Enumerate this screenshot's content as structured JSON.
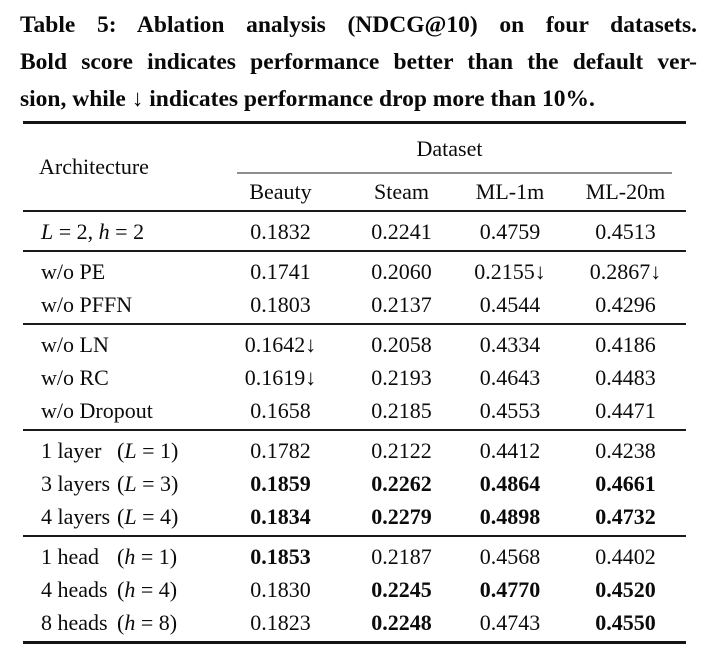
{
  "caption": {
    "lines": [
      "Table 5: Ablation analysis (NDCG@10) on four datasets.",
      "Bold score indicates performance better than the default ver-",
      "sion, while ↓ indicates performance drop more than 10%."
    ]
  },
  "table": {
    "corner_header": "Architecture",
    "group_header": "Dataset",
    "columns": [
      "Beauty",
      "Steam",
      "ML-1m",
      "ML-20m"
    ],
    "sections": [
      {
        "rows": [
          {
            "name": [
              {
                "t": "L",
                "i": true
              },
              {
                "t": " = 2, ",
                "i": false
              },
              {
                "t": "h",
                "i": true
              },
              {
                "t": " = 2",
                "i": false
              }
            ],
            "paren": null,
            "cells": [
              {
                "v": "0.1832",
                "b": false
              },
              {
                "v": "0.2241",
                "b": false
              },
              {
                "v": "0.4759",
                "b": false
              },
              {
                "v": "0.4513",
                "b": false
              }
            ]
          }
        ]
      },
      {
        "rows": [
          {
            "name": [
              {
                "t": "w/o PE",
                "i": false
              }
            ],
            "paren": null,
            "cells": [
              {
                "v": "0.1741",
                "b": false
              },
              {
                "v": "0.2060",
                "b": false
              },
              {
                "v": "0.2155↓",
                "b": false
              },
              {
                "v": "0.2867↓",
                "b": false
              }
            ]
          },
          {
            "name": [
              {
                "t": "w/o PFFN",
                "i": false
              }
            ],
            "paren": null,
            "cells": [
              {
                "v": "0.1803",
                "b": false
              },
              {
                "v": "0.2137",
                "b": false
              },
              {
                "v": "0.4544",
                "b": false
              },
              {
                "v": "0.4296",
                "b": false
              }
            ]
          }
        ]
      },
      {
        "rows": [
          {
            "name": [
              {
                "t": "w/o LN",
                "i": false
              }
            ],
            "paren": null,
            "cells": [
              {
                "v": "0.1642↓",
                "b": false
              },
              {
                "v": "0.2058",
                "b": false
              },
              {
                "v": "0.4334",
                "b": false
              },
              {
                "v": "0.4186",
                "b": false
              }
            ]
          },
          {
            "name": [
              {
                "t": "w/o RC",
                "i": false
              }
            ],
            "paren": null,
            "cells": [
              {
                "v": "0.1619↓",
                "b": false
              },
              {
                "v": "0.2193",
                "b": false
              },
              {
                "v": "0.4643",
                "b": false
              },
              {
                "v": "0.4483",
                "b": false
              }
            ]
          },
          {
            "name": [
              {
                "t": "w/o Dropout",
                "i": false
              }
            ],
            "paren": null,
            "cells": [
              {
                "v": "0.1658",
                "b": false
              },
              {
                "v": "0.2185",
                "b": false
              },
              {
                "v": "0.4553",
                "b": false
              },
              {
                "v": "0.4471",
                "b": false
              }
            ]
          }
        ]
      },
      {
        "rows": [
          {
            "name": [
              {
                "t": "1 layer",
                "i": false
              }
            ],
            "paren": [
              {
                "t": "(",
                "i": false
              },
              {
                "t": "L",
                "i": true
              },
              {
                "t": " = 1)",
                "i": false
              }
            ],
            "cells": [
              {
                "v": "0.1782",
                "b": false
              },
              {
                "v": "0.2122",
                "b": false
              },
              {
                "v": "0.4412",
                "b": false
              },
              {
                "v": "0.4238",
                "b": false
              }
            ]
          },
          {
            "name": [
              {
                "t": "3 layers",
                "i": false
              }
            ],
            "paren": [
              {
                "t": "(",
                "i": false
              },
              {
                "t": "L",
                "i": true
              },
              {
                "t": " = 3)",
                "i": false
              }
            ],
            "cells": [
              {
                "v": "0.1859",
                "b": true
              },
              {
                "v": "0.2262",
                "b": true
              },
              {
                "v": "0.4864",
                "b": true
              },
              {
                "v": "0.4661",
                "b": true
              }
            ]
          },
          {
            "name": [
              {
                "t": "4 layers",
                "i": false
              }
            ],
            "paren": [
              {
                "t": "(",
                "i": false
              },
              {
                "t": "L",
                "i": true
              },
              {
                "t": " = 4)",
                "i": false
              }
            ],
            "cells": [
              {
                "v": "0.1834",
                "b": true
              },
              {
                "v": "0.2279",
                "b": true
              },
              {
                "v": "0.4898",
                "b": true
              },
              {
                "v": "0.4732",
                "b": true
              }
            ]
          }
        ]
      },
      {
        "rows": [
          {
            "name": [
              {
                "t": "1 head",
                "i": false
              }
            ],
            "paren": [
              {
                "t": "(",
                "i": false
              },
              {
                "t": "h",
                "i": true
              },
              {
                "t": " = 1)",
                "i": false
              }
            ],
            "cells": [
              {
                "v": "0.1853",
                "b": true
              },
              {
                "v": "0.2187",
                "b": false
              },
              {
                "v": "0.4568",
                "b": false
              },
              {
                "v": "0.4402",
                "b": false
              }
            ]
          },
          {
            "name": [
              {
                "t": "4 heads",
                "i": false
              }
            ],
            "paren": [
              {
                "t": "(",
                "i": false
              },
              {
                "t": "h",
                "i": true
              },
              {
                "t": " = 4)",
                "i": false
              }
            ],
            "cells": [
              {
                "v": "0.1830",
                "b": false
              },
              {
                "v": "0.2245",
                "b": true
              },
              {
                "v": "0.4770",
                "b": true
              },
              {
                "v": "0.4520",
                "b": true
              }
            ]
          },
          {
            "name": [
              {
                "t": "8 heads",
                "i": false
              }
            ],
            "paren": [
              {
                "t": "(",
                "i": false
              },
              {
                "t": "h",
                "i": true
              },
              {
                "t": " = 8)",
                "i": false
              }
            ],
            "cells": [
              {
                "v": "0.1823",
                "b": false
              },
              {
                "v": "0.2248",
                "b": true
              },
              {
                "v": "0.4743",
                "b": false
              },
              {
                "v": "0.4550",
                "b": true
              }
            ]
          }
        ]
      }
    ]
  }
}
